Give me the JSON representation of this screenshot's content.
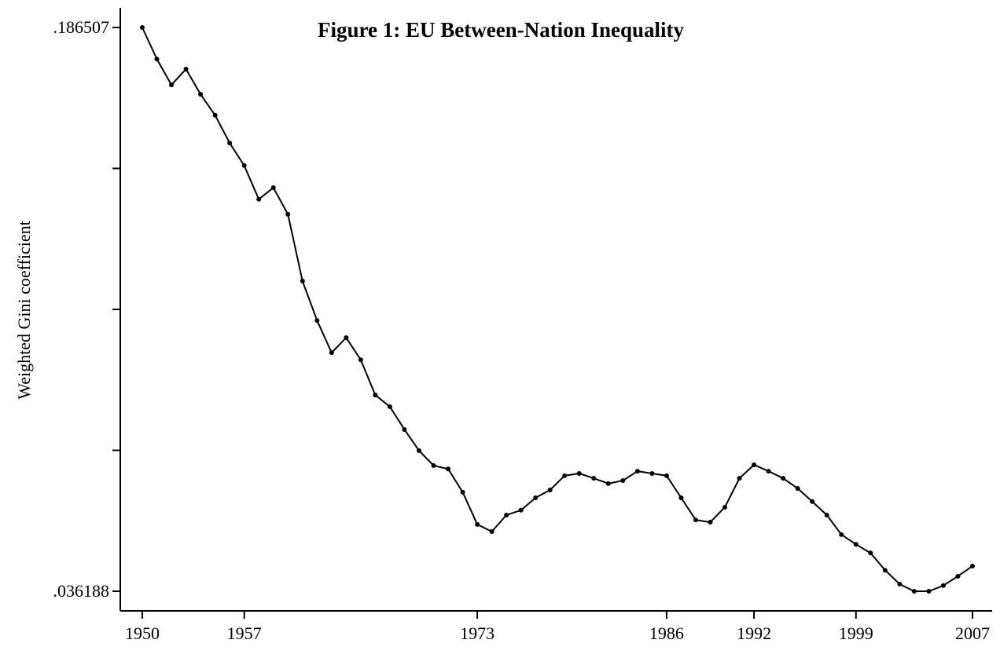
{
  "chart_data": {
    "type": "line",
    "title": "Figure 1: EU Between-Nation Inequality",
    "y_label": "Weighted Gini coefficient",
    "x": [
      1950,
      1951,
      1952,
      1953,
      1954,
      1955,
      1956,
      1957,
      1958,
      1959,
      1960,
      1961,
      1962,
      1963,
      1964,
      1965,
      1966,
      1967,
      1968,
      1969,
      1970,
      1971,
      1972,
      1973,
      1974,
      1975,
      1976,
      1977,
      1978,
      1979,
      1980,
      1981,
      1982,
      1983,
      1984,
      1985,
      1986,
      1987,
      1988,
      1989,
      1990,
      1991,
      1992,
      1993,
      1994,
      1995,
      1996,
      1997,
      1998,
      1999,
      2000,
      2001,
      2002,
      2003,
      2004,
      2005,
      2006,
      2007
    ],
    "series": [
      {
        "name": "Weighted Gini coefficient",
        "color": "#000000",
        "values": [
          0.186507,
          0.1781,
          0.1712,
          0.1754,
          0.1687,
          0.1631,
          0.1557,
          0.1497,
          0.1407,
          0.1438,
          0.1367,
          0.1189,
          0.1084,
          0.0998,
          0.1038,
          0.0979,
          0.0885,
          0.0854,
          0.0793,
          0.0737,
          0.0697,
          0.0688,
          0.0626,
          0.054,
          0.0521,
          0.0565,
          0.0578,
          0.0611,
          0.0632,
          0.067,
          0.0676,
          0.0663,
          0.0649,
          0.0657,
          0.0682,
          0.0676,
          0.067,
          0.0611,
          0.0552,
          0.0546,
          0.0586,
          0.0663,
          0.0699,
          0.0682,
          0.0663,
          0.0636,
          0.0601,
          0.0565,
          0.0513,
          0.0487,
          0.0464,
          0.0418,
          0.0381,
          0.036188,
          0.036188,
          0.0377,
          0.0402,
          0.0429
        ]
      }
    ],
    "xlim": [
      1948.49,
      2008.35
    ],
    "xticks": [
      1950,
      1957,
      1973,
      1986,
      1992,
      1999,
      2007
    ],
    "ylim": [
      0.030954,
      0.191741
    ],
    "yticks": [
      {
        "value": 0.186507,
        "label": ".186507"
      },
      {
        "value": 0.036188,
        "label": ".036188"
      }
    ],
    "yticks_minor": [
      0.148927,
      0.111348,
      0.073768
    ]
  }
}
